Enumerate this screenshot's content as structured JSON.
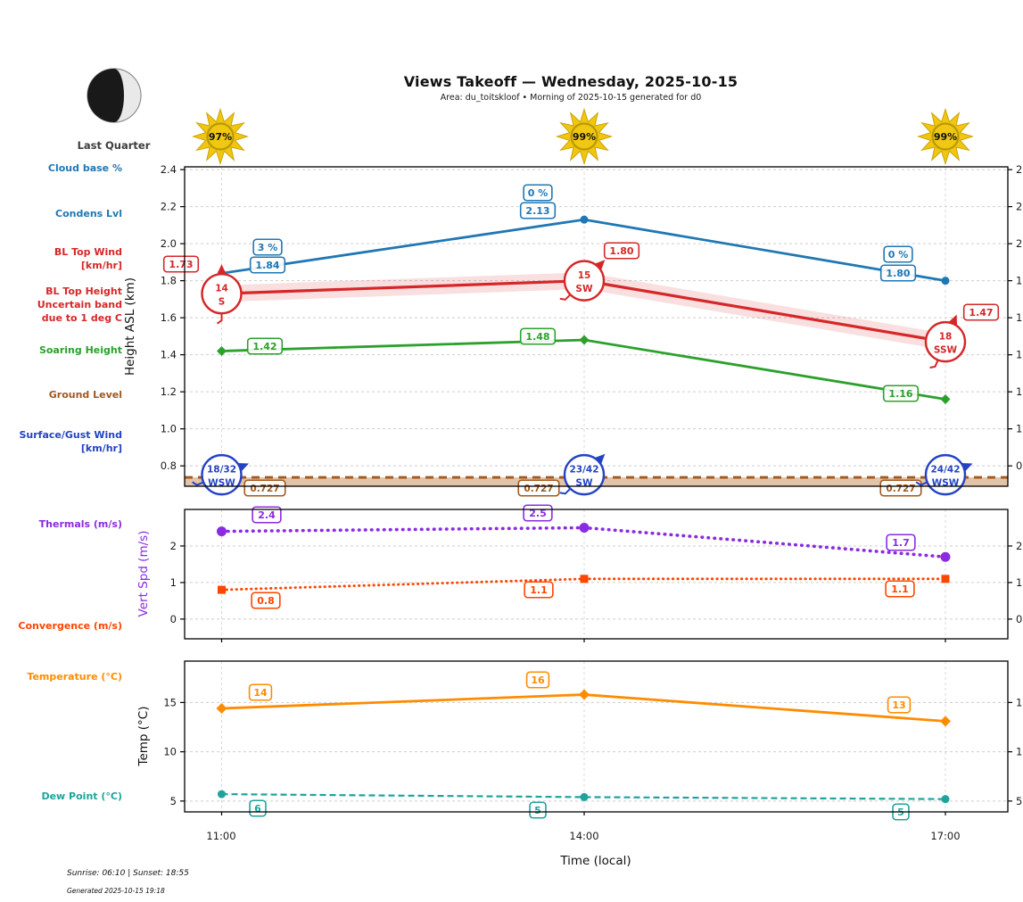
{
  "header": {
    "title": "Views Takeoff — Wednesday, 2025-10-15",
    "subtitle": "Area: du_toitskloof • Morning of 2025-10-15 generated for d0",
    "moon_phase": "Last Quarter",
    "sun_percents": [
      "97%",
      "99%",
      "99%"
    ]
  },
  "footer": {
    "sun_times": "Sunrise: 06:10 | Sunset: 18:55",
    "generated": "Generated 2025-10-15 19:18"
  },
  "axes": {
    "x_label": "Time (local)",
    "height_axis_label": "Height ASL (km)",
    "vert_axis_label": "Vert Spd (m/s)",
    "temp_axis_label": "Temp (°C)"
  },
  "legend": {
    "cloud_base": "Cloud base %",
    "condens": "Condens Lvl",
    "bl_top_wind": [
      "BL Top Wind",
      "[km/hr]"
    ],
    "bl_top_height": [
      "BL Top Height",
      "Uncertain band",
      "due to 1 deg C"
    ],
    "soaring": "Soaring Height",
    "ground": "Ground Level",
    "surface_wind": [
      "Surface/Gust Wind",
      "[km/hr]"
    ],
    "thermals": "Thermals (m/s)",
    "convergence": "Convergence (m/s)",
    "temperature": "Temperature (°C)",
    "dew_point": "Dew Point (°C)"
  },
  "colors": {
    "condens_blue": "#1f77b4",
    "bl_red": "#d62728",
    "soaring_green": "#2ca02c",
    "ground_brown": "#a0591f",
    "ground_band_fill": "#d8b08c",
    "surface_wind_blue": "#2343c3",
    "thermals_purple": "#8a2be2",
    "convergence_orangered": "#ff4500",
    "temperature_orange": "#ff8c00",
    "dew_teal": "#1fa39d",
    "sun_gold": "#f2c50f"
  },
  "chart_data": [
    {
      "type": "line",
      "title": "Heights panel",
      "x": [
        "11:00",
        "14:00",
        "17:00"
      ],
      "ylabel": "Height ASL (km)",
      "ylim": [
        0.69,
        2.415
      ],
      "yticks": [
        2.4,
        2.2,
        2.0,
        1.8,
        1.6,
        1.4,
        1.2,
        1.0,
        0.8
      ],
      "grid": true,
      "series": [
        {
          "key": "cloud_base",
          "kind": "labels-only",
          "name": "Cloud base %",
          "labels": [
            "3 %",
            "0 %",
            "0 %"
          ],
          "color": "#1f77b4"
        },
        {
          "key": "condens",
          "kind": "line",
          "name": "Condens Lvl",
          "values": [
            1.84,
            2.13,
            1.8
          ],
          "labels": [
            "1.84",
            "2.13",
            "1.80"
          ],
          "color": "#1f77b4"
        },
        {
          "key": "bl_top_height",
          "kind": "line-band",
          "name": "BL Top Height (uncertain band due to 1 deg C)",
          "values": [
            1.73,
            1.8,
            1.47
          ],
          "labels": [
            "1.73",
            "1.80",
            "1.47"
          ],
          "band": 0.045,
          "color": "#d62728"
        },
        {
          "key": "bl_top_wind",
          "kind": "wind",
          "name": "BL Top Wind [km/hr]",
          "speeds": [
            "14",
            "15",
            "18"
          ],
          "directions": [
            "S",
            "SW",
            "SSW"
          ],
          "anchor": "bl_top_height",
          "color": "#d62728"
        },
        {
          "key": "soaring",
          "kind": "line",
          "name": "Soaring Height",
          "values": [
            1.42,
            1.48,
            1.16
          ],
          "labels": [
            "1.42",
            "1.48",
            "1.16"
          ],
          "color": "#2ca02c"
        },
        {
          "key": "ground",
          "kind": "ground",
          "name": "Ground Level",
          "values": [
            0.727,
            0.727,
            0.727
          ],
          "labels": [
            "0.727",
            "0.727",
            "0.727"
          ],
          "color": "#a0591f",
          "fill": "#d8b08c"
        },
        {
          "key": "surface_wind",
          "kind": "wind",
          "name": "Surface/Gust Wind [km/hr]",
          "speeds": [
            "18/32",
            "23/42",
            "24/42"
          ],
          "directions": [
            "WSW",
            "SW",
            "WSW"
          ],
          "color": "#2343c3"
        }
      ]
    },
    {
      "type": "line",
      "title": "Vertical speed panel",
      "x": [
        "11:00",
        "14:00",
        "17:00"
      ],
      "ylabel": "Vert Spd (m/s)",
      "ylim": [
        -0.54,
        3.0
      ],
      "yticks": [
        2,
        1,
        0
      ],
      "grid": true,
      "series": [
        {
          "key": "thermals",
          "kind": "line",
          "name": "Thermals (m/s)",
          "values": [
            2.4,
            2.5,
            1.7
          ],
          "labels": [
            "2.4",
            "2.5",
            "1.7"
          ],
          "color": "#8a2be2"
        },
        {
          "key": "convergence",
          "kind": "line",
          "name": "Convergence (m/s)",
          "values": [
            0.8,
            1.1,
            1.1
          ],
          "labels": [
            "0.8",
            "1.1",
            "1.1"
          ],
          "color": "#ff4500"
        }
      ]
    },
    {
      "type": "line",
      "title": "Temperature panel",
      "x": [
        "11:00",
        "14:00",
        "17:00"
      ],
      "ylabel": "Temp (°C)",
      "ylim": [
        3.9,
        19.2
      ],
      "yticks": [
        15,
        10,
        5
      ],
      "grid": true,
      "series": [
        {
          "key": "temperature",
          "kind": "line",
          "name": "Temperature (°C)",
          "values": [
            14.4,
            15.8,
            13.1
          ],
          "labels": [
            "14",
            "16",
            "13"
          ],
          "color": "#ff8c00"
        },
        {
          "key": "dew_point",
          "kind": "line",
          "name": "Dew Point (°C)",
          "values": [
            5.7,
            5.4,
            5.2
          ],
          "labels": [
            "6",
            "5",
            "5"
          ],
          "color": "#1fa39d"
        }
      ]
    }
  ]
}
